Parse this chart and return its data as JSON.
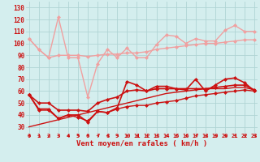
{
  "x": [
    0,
    1,
    2,
    3,
    4,
    5,
    6,
    7,
    8,
    9,
    10,
    11,
    12,
    13,
    14,
    15,
    16,
    17,
    18,
    19,
    20,
    21,
    22,
    23
  ],
  "series": [
    {
      "name": "rafales_max",
      "color": "#f0a0a0",
      "lw": 1.0,
      "marker": "D",
      "ms": 2.0,
      "values": [
        104,
        95,
        88,
        122,
        88,
        88,
        55,
        83,
        95,
        88,
        96,
        88,
        88,
        99,
        107,
        106,
        100,
        104,
        102,
        102,
        111,
        115,
        110,
        110
      ]
    },
    {
      "name": "rafales_smooth",
      "color": "#f0a0a0",
      "lw": 1.0,
      "marker": "D",
      "ms": 2.0,
      "values": [
        104,
        95,
        88,
        90,
        90,
        90,
        89,
        90,
        91,
        91,
        92,
        92,
        93,
        95,
        96,
        97,
        98,
        99,
        100,
        100,
        101,
        102,
        103,
        103
      ]
    },
    {
      "name": "vent_max",
      "color": "#cc1111",
      "lw": 1.2,
      "marker": "D",
      "ms": 2.0,
      "values": [
        57,
        45,
        45,
        37,
        40,
        40,
        34,
        43,
        42,
        46,
        68,
        65,
        60,
        64,
        64,
        62,
        61,
        70,
        60,
        65,
        70,
        71,
        67,
        60
      ]
    },
    {
      "name": "vent_smooth",
      "color": "#cc1111",
      "lw": 1.2,
      "marker": "D",
      "ms": 2.0,
      "values": [
        57,
        50,
        50,
        44,
        44,
        44,
        43,
        50,
        53,
        55,
        60,
        61,
        60,
        62,
        62,
        62,
        62,
        62,
        62,
        63,
        64,
        65,
        65,
        61
      ]
    },
    {
      "name": "vent_diag",
      "color": "#cc1111",
      "lw": 1.0,
      "marker": null,
      "ms": 0,
      "values": [
        30,
        32,
        34,
        36,
        38,
        40,
        42,
        44,
        46,
        48,
        50,
        52,
        54,
        56,
        58,
        59,
        60,
        61,
        62,
        62,
        62,
        63,
        63,
        61
      ]
    },
    {
      "name": "vent_min",
      "color": "#cc1111",
      "lw": 1.0,
      "marker": "D",
      "ms": 2.0,
      "values": [
        57,
        44,
        44,
        37,
        40,
        38,
        35,
        43,
        42,
        45,
        47,
        48,
        48,
        50,
        51,
        52,
        54,
        56,
        57,
        58,
        59,
        60,
        61,
        60
      ]
    }
  ],
  "xlabel": "Vent moyen/en rafales ( km/h )",
  "xlim": [
    -0.3,
    23.3
  ],
  "ylim": [
    25,
    135
  ],
  "yticks": [
    30,
    40,
    50,
    60,
    70,
    80,
    90,
    100,
    110,
    120,
    130
  ],
  "xticks": [
    0,
    1,
    2,
    3,
    4,
    5,
    6,
    7,
    8,
    9,
    10,
    11,
    12,
    13,
    14,
    15,
    16,
    17,
    18,
    19,
    20,
    21,
    22,
    23
  ],
  "bg_color": "#d4eeee",
  "grid_color": "#b0d4d4",
  "label_color": "#cc1111"
}
